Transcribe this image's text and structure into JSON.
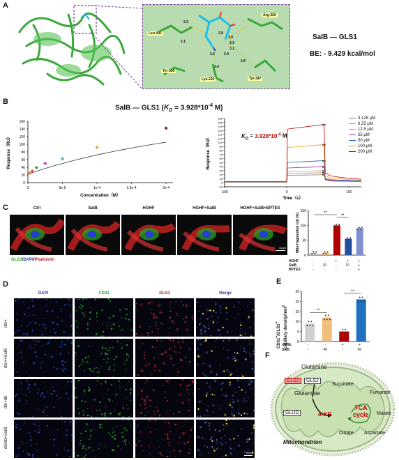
{
  "panels": {
    "A": {
      "letter": "A",
      "title": "SalB — GLS1",
      "be": "BE:  - 9.429 kcal/mol",
      "residues": [
        "Leu-441",
        "Arg-320",
        "Tyr-399",
        "Lys-222",
        "Tyr-347"
      ],
      "distances": [
        "2.3",
        "2.1",
        "2.8",
        "3.0",
        "3.3",
        "3.1",
        "3.2",
        "2.9",
        "2.6",
        "3.4"
      ]
    },
    "B": {
      "letter": "B",
      "title_pre": "SalB — GLS1 (",
      "kd_label": "K",
      "kd_sub": "D",
      "title_post": " = 3.928*10",
      "title_exp": "-4",
      "title_unit": " M)",
      "inset_kd_label": "K",
      "inset_kd_sub": "D",
      "inset_eq": " = ",
      "inset_kd_val": "3.928*10",
      "inset_kd_exp": "-4",
      "inset_unit": " M"
    },
    "C": {
      "letter": "C",
      "conditions": [
        "Ctrl",
        "SalB",
        "HGHF",
        "HGHF+SalB",
        "HGHF+SalB+BPTES"
      ],
      "stain_green": "GLS1",
      "stain_sep1": "/",
      "stain_blue": "DAPI",
      "stain_sep2": "/",
      "stain_red": "Phalloidin",
      "scale": "10μm",
      "ylabel": "Mito-fragmented cell (%)",
      "row_labels": [
        "HGHF",
        "SalB",
        "BPTES"
      ],
      "col_vals": [
        [
          "-",
          "-",
          "+",
          "+",
          "+"
        ],
        [
          "-",
          "10",
          "-",
          "10",
          "+"
        ],
        [
          "-",
          "-",
          "-",
          "-",
          "+"
        ]
      ],
      "sig": [
        "**",
        "**"
      ]
    },
    "D": {
      "letter": "D",
      "columns": [
        "DAPI",
        "CD31",
        "GLS1",
        "Merge"
      ],
      "rows": [
        "db/+",
        "db/++SalB",
        "db/+db",
        "db/db+SalB"
      ],
      "scale": "50μm"
    },
    "E": {
      "letter": "E",
      "ylabel_top": "CD31",
      "ylabel_sup1": "+",
      "ylabel_mid": "/GLS1",
      "ylabel_sup2": "+",
      "ylabel_bot": "capillary density/mm",
      "ylabel_sup3": "2",
      "row_labels": [
        "db/db",
        "SalB"
      ],
      "col_vals": [
        [
          "-",
          "-",
          "+",
          "+"
        ],
        [
          "-",
          "40",
          "-",
          "40"
        ]
      ],
      "sig": [
        "**",
        "**"
      ]
    },
    "F": {
      "letter": "F",
      "glutamine": "Glutamine",
      "gls1": "GLS1",
      "gls2": "GLS2",
      "glutamate": "Glutamate",
      "glud": "GLUD",
      "akg": "α-KG",
      "tca1": "TCA",
      "tca2": "cycle",
      "succinate": "Succinate",
      "fumarate": "Fumarate",
      "malate": "Malate",
      "citrate": "Citrate",
      "aspartate": "Aspartate",
      "mito": "Mitochondrion"
    }
  },
  "chart_data": [
    {
      "type": "scatter",
      "title": "SalB — GLS1 (KD = 3.928*10-4 M)",
      "xlabel": "Concentration（M）",
      "ylabel": "Response（RU）",
      "xlim": [
        0,
        0.00021
      ],
      "ylim": [
        0,
        160
      ],
      "xticks": [
        "0",
        "5e-5",
        "1e-4",
        "1.5e-4",
        "2e-4"
      ],
      "yticks": [
        "0",
        "20",
        "40",
        "60",
        "80",
        "100",
        "120",
        "140",
        "160"
      ],
      "x": [
        3.125e-06,
        6.25e-06,
        1.25e-05,
        2.5e-05,
        5e-05,
        0.0001,
        0.0002
      ],
      "y": [
        25,
        30,
        39,
        50,
        62,
        92,
        142
      ],
      "colors": [
        "#e08040",
        "#e05050",
        "#40a040",
        "#c040c0",
        "#40c0c0",
        "#f0a030",
        "#8b1a6b"
      ]
    },
    {
      "type": "line",
      "xlabel": "Time（s）",
      "ylabel": "Response（RU）",
      "xlim": [
        -100,
        120
      ],
      "ylim": [
        -10,
        160
      ],
      "xticks": [
        "-100",
        "0",
        "100"
      ],
      "yticks": [
        "-10",
        "0",
        "10",
        "20",
        "30",
        "40",
        "50",
        "60",
        "70",
        "80",
        "90",
        "100",
        "110",
        "120",
        "130",
        "140",
        "150",
        "160"
      ],
      "series": [
        {
          "name": "3.125 μM",
          "plateau": 20,
          "color": "#808080"
        },
        {
          "name": "6.25 μM",
          "plateau": 25,
          "color": "#e07030"
        },
        {
          "name": "12.5 μM",
          "plateau": 30,
          "color": "#a0a0a0"
        },
        {
          "name": "25 μM",
          "plateau": 40,
          "color": "#a020a0"
        },
        {
          "name": "50 μM",
          "plateau": 55,
          "color": "#1060c0"
        },
        {
          "name": "100 μM",
          "plateau": 95,
          "color": "#f0a000"
        },
        {
          "name": "200 μM",
          "plateau": 145,
          "color": "#c00000"
        }
      ]
    },
    {
      "type": "bar",
      "ylabel": "Mito-fragmented cell (%)",
      "ylim": [
        0,
        150
      ],
      "yticks": [
        "0",
        "50",
        "100",
        "150"
      ],
      "values": [
        8,
        8,
        100,
        55,
        90
      ],
      "colors": [
        "#d0d0d0",
        "#f0c080",
        "#b00000",
        "#2050a0",
        "#8090d0"
      ]
    },
    {
      "type": "bar",
      "ylabel": "CD31+/GLS1+ capillary density/mm2",
      "ylim": [
        0,
        25
      ],
      "yticks": [
        "0",
        "5",
        "10",
        "15",
        "20",
        "25"
      ],
      "values": [
        9,
        12,
        5,
        21
      ],
      "colors": [
        "#d0d0d0",
        "#f0c080",
        "#b00000",
        "#2070c0"
      ]
    }
  ]
}
